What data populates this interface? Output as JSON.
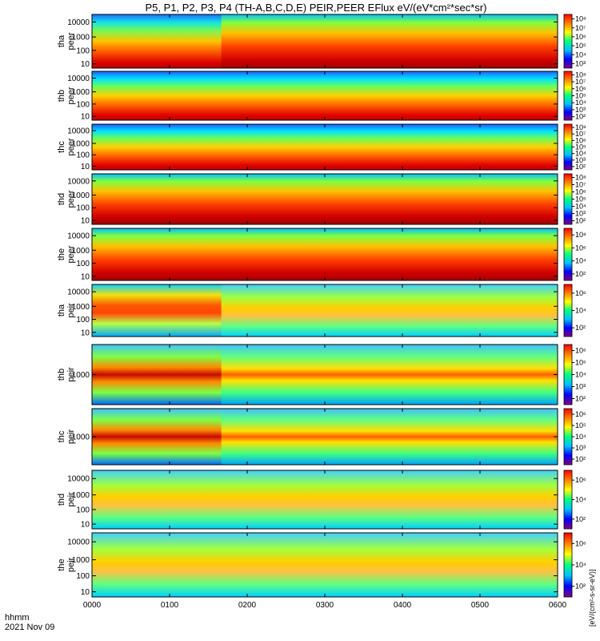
{
  "chart_data": {
    "type": "heatmap",
    "title": "P5, P1, P2, P3, P4 (TH-A,B,C,D,E) PEIR,PEER EFlux eV/(eV*cm²*sec*sr)",
    "x_ticks": [
      "0000",
      "0100",
      "0200",
      "0300",
      "0400",
      "0500",
      "0600"
    ],
    "x_range_hhmm": [
      "0000",
      "0600"
    ],
    "xlabel_line1": "hhmm",
    "xlabel_line2": "2021 Nov 09",
    "colorbar_unit": "[eV/(cm²-s-sr-eV)]",
    "colormap": [
      "#800080",
      "#0000ff",
      "#00c0ff",
      "#00ff80",
      "#ffff00",
      "#ff8000",
      "#ff0000"
    ],
    "panels": [
      {
        "label_line1": "tha",
        "label_line2": "peer",
        "y_ticks": [
          "10",
          "100",
          "1000",
          "10000"
        ],
        "cbar_ticks": [
          "10³",
          "10⁴",
          "10⁵",
          "10⁶",
          "10⁷",
          "10⁸"
        ],
        "peak_energy_eV": 300,
        "cold_until_hhmm": "0140"
      },
      {
        "label_line1": "thb",
        "label_line2": "peer",
        "y_ticks": [
          "10",
          "100",
          "1000",
          "10000"
        ],
        "cbar_ticks": [
          "10²",
          "10³",
          "10⁴",
          "10⁵",
          "10⁶",
          "10⁷",
          "10⁸"
        ],
        "peak_energy_eV": 30
      },
      {
        "label_line1": "thc",
        "label_line2": "peer",
        "y_ticks": [
          "10",
          "100",
          "1000",
          "10000"
        ],
        "cbar_ticks": [
          "10²",
          "10³",
          "10⁴",
          "10⁵",
          "10⁶",
          "10⁷",
          "10⁸"
        ],
        "peak_energy_eV": 30
      },
      {
        "label_line1": "thd",
        "label_line2": "peer",
        "y_ticks": [
          "10",
          "100",
          "1000",
          "10000"
        ],
        "cbar_ticks": [
          "10²",
          "10³",
          "10⁴",
          "10⁵",
          "10⁶",
          "10⁷",
          "10⁸"
        ],
        "peak_energy_eV": 300
      },
      {
        "label_line1": "the",
        "label_line2": "peer",
        "y_ticks": [
          "10",
          "100",
          "1000",
          "10000"
        ],
        "cbar_ticks": [
          "10²",
          "10⁴",
          "10⁶",
          "10⁸"
        ],
        "peak_energy_eV": 300
      },
      {
        "label_line1": "tha",
        "label_line2": "peir",
        "y_ticks": [
          "10",
          "100",
          "1000",
          "10000"
        ],
        "cbar_ticks": [
          "10²",
          "10⁴",
          "10⁶"
        ],
        "peak_energy_eV": 1500,
        "bursty_until_hhmm": "0140"
      },
      {
        "label_line1": "thb",
        "label_line2": "peir",
        "y_ticks": [
          "1000"
        ],
        "cbar_ticks": [
          "10²",
          "10³",
          "10⁴",
          "10⁵",
          "10⁶"
        ],
        "peak_energy_eV": 1000
      },
      {
        "label_line1": "thc",
        "label_line2": "peir",
        "y_ticks": [
          "1000"
        ],
        "cbar_ticks": [
          "10²",
          "10³",
          "10⁴",
          "10⁵",
          "10⁶"
        ],
        "peak_energy_eV": 1000
      },
      {
        "label_line1": "thd",
        "label_line2": "peir",
        "y_ticks": [
          "10",
          "100",
          "1000",
          "10000"
        ],
        "cbar_ticks": [
          "10²",
          "10⁴",
          "10⁶"
        ],
        "peak_energy_eV": 1500
      },
      {
        "label_line1": "the",
        "label_line2": "peir",
        "y_ticks": [
          "10",
          "100",
          "1000",
          "10000"
        ],
        "cbar_ticks": [
          "10²",
          "10⁴",
          "10⁶"
        ],
        "peak_energy_eV": 1500
      }
    ]
  }
}
